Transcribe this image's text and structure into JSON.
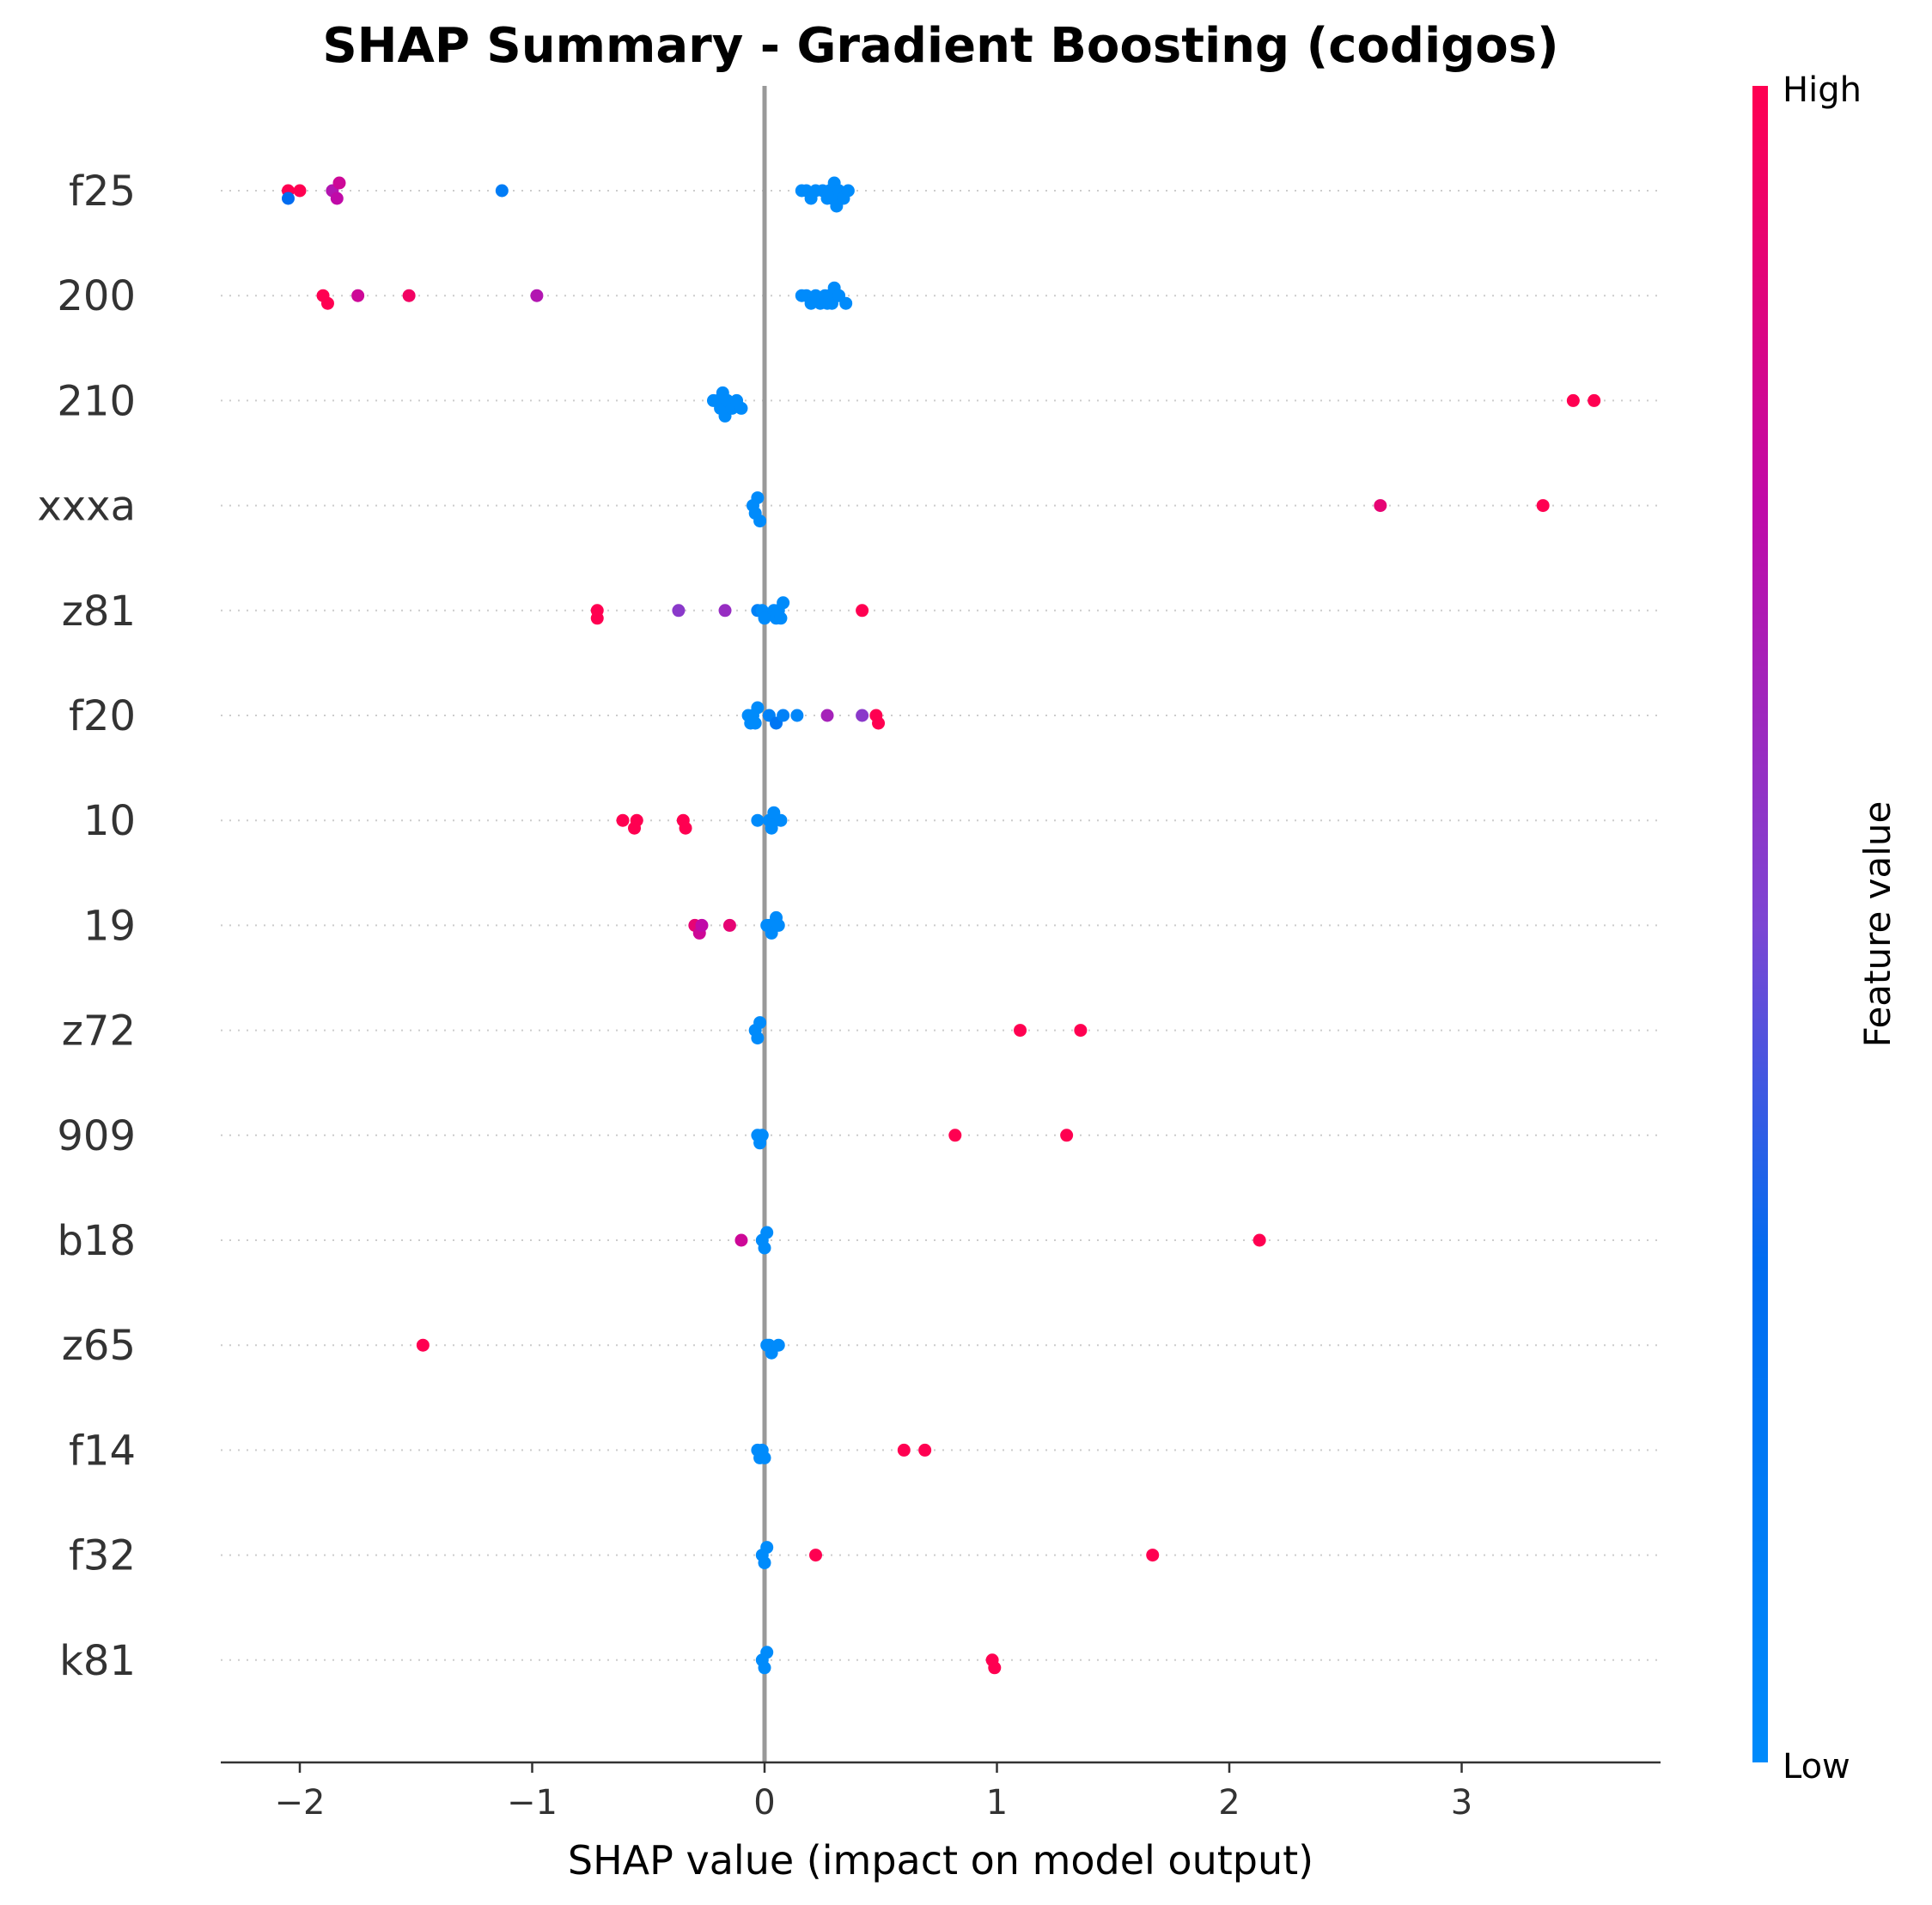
{
  "chart_data": {
    "type": "scatter",
    "title": "SHAP Summary - Gradient Boosting (codigos)",
    "xlabel": "SHAP value (impact on model output)",
    "xlim": [
      -2.35,
      3.85
    ],
    "xticks": [
      {
        "value": -2,
        "label": "−2"
      },
      {
        "value": -1,
        "label": "−1"
      },
      {
        "value": 0,
        "label": "0"
      },
      {
        "value": 1,
        "label": "1"
      },
      {
        "value": 2,
        "label": "2"
      },
      {
        "value": 3,
        "label": "3"
      }
    ],
    "colorbar": {
      "title": "Feature value",
      "high_label": "High",
      "low_label": "Low",
      "low_color": "#008bfb",
      "high_color": "#ff0051"
    },
    "grid": "dotted row lines per feature",
    "zero_line_color": "#999999",
    "features": [
      {
        "name": "f25",
        "points": [
          {
            "x": -2.05,
            "v": 1.0
          },
          {
            "x": -2.05,
            "v": 0.3
          },
          {
            "x": -2.0,
            "v": 1.0
          },
          {
            "x": -1.86,
            "v": 0.7
          },
          {
            "x": -1.84,
            "v": 0.75
          },
          {
            "x": -1.83,
            "v": 0.8
          },
          {
            "x": -1.13,
            "v": 0.15
          },
          {
            "x": 0.16,
            "v": 0
          },
          {
            "x": 0.18,
            "v": 0
          },
          {
            "x": 0.2,
            "v": 0
          },
          {
            "x": 0.22,
            "v": 0
          },
          {
            "x": 0.25,
            "v": 0
          },
          {
            "x": 0.27,
            "v": 0
          },
          {
            "x": 0.28,
            "v": 0
          },
          {
            "x": 0.29,
            "v": 0
          },
          {
            "x": 0.3,
            "v": 0
          },
          {
            "x": 0.31,
            "v": 0
          },
          {
            "x": 0.32,
            "v": 0
          },
          {
            "x": 0.34,
            "v": 0
          },
          {
            "x": 0.36,
            "v": 0
          }
        ]
      },
      {
        "name": "200",
        "points": [
          {
            "x": -1.9,
            "v": 1.0
          },
          {
            "x": -1.88,
            "v": 1.0
          },
          {
            "x": -1.75,
            "v": 0.8
          },
          {
            "x": -1.53,
            "v": 0.95
          },
          {
            "x": -0.98,
            "v": 0.7
          },
          {
            "x": 0.16,
            "v": 0
          },
          {
            "x": 0.18,
            "v": 0
          },
          {
            "x": 0.2,
            "v": 0
          },
          {
            "x": 0.22,
            "v": 0
          },
          {
            "x": 0.24,
            "v": 0
          },
          {
            "x": 0.26,
            "v": 0
          },
          {
            "x": 0.27,
            "v": 0
          },
          {
            "x": 0.28,
            "v": 0
          },
          {
            "x": 0.29,
            "v": 0
          },
          {
            "x": 0.3,
            "v": 0
          },
          {
            "x": 0.32,
            "v": 0
          },
          {
            "x": 0.35,
            "v": 0
          }
        ]
      },
      {
        "name": "210",
        "points": [
          {
            "x": -0.22,
            "v": 0
          },
          {
            "x": -0.2,
            "v": 0
          },
          {
            "x": -0.19,
            "v": 0
          },
          {
            "x": -0.18,
            "v": 0
          },
          {
            "x": -0.17,
            "v": 0
          },
          {
            "x": -0.16,
            "v": 0
          },
          {
            "x": -0.14,
            "v": 0
          },
          {
            "x": -0.12,
            "v": 0
          },
          {
            "x": -0.1,
            "v": 0
          },
          {
            "x": 3.48,
            "v": 1.0
          },
          {
            "x": 3.57,
            "v": 1.0
          }
        ]
      },
      {
        "name": "xxxa",
        "points": [
          {
            "x": -0.05,
            "v": 0
          },
          {
            "x": -0.04,
            "v": 0
          },
          {
            "x": -0.03,
            "v": 0
          },
          {
            "x": -0.02,
            "v": 0
          },
          {
            "x": 2.65,
            "v": 0.9
          },
          {
            "x": 3.35,
            "v": 1.0
          }
        ]
      },
      {
        "name": "z81",
        "points": [
          {
            "x": -0.72,
            "v": 1.0
          },
          {
            "x": -0.72,
            "v": 1.0
          },
          {
            "x": -0.37,
            "v": 0.55
          },
          {
            "x": -0.17,
            "v": 0.6
          },
          {
            "x": -0.03,
            "v": 0.1
          },
          {
            "x": -0.01,
            "v": 0
          },
          {
            "x": 0.0,
            "v": 0
          },
          {
            "x": 0.04,
            "v": 0
          },
          {
            "x": 0.05,
            "v": 0
          },
          {
            "x": 0.06,
            "v": 0
          },
          {
            "x": 0.07,
            "v": 0
          },
          {
            "x": 0.08,
            "v": 0
          },
          {
            "x": 0.42,
            "v": 1.0
          }
        ]
      },
      {
        "name": "f20",
        "points": [
          {
            "x": -0.07,
            "v": 0
          },
          {
            "x": -0.06,
            "v": 0
          },
          {
            "x": -0.05,
            "v": 0
          },
          {
            "x": -0.04,
            "v": 0
          },
          {
            "x": -0.03,
            "v": 0
          },
          {
            "x": 0.02,
            "v": 0.1
          },
          {
            "x": 0.05,
            "v": 0.2
          },
          {
            "x": 0.08,
            "v": 0.1
          },
          {
            "x": 0.14,
            "v": 0.05
          },
          {
            "x": 0.27,
            "v": 0.65
          },
          {
            "x": 0.42,
            "v": 0.55
          },
          {
            "x": 0.48,
            "v": 1.0
          },
          {
            "x": 0.49,
            "v": 1.0
          }
        ]
      },
      {
        "name": "10",
        "points": [
          {
            "x": -0.61,
            "v": 1.0
          },
          {
            "x": -0.55,
            "v": 1.0
          },
          {
            "x": -0.56,
            "v": 1.0
          },
          {
            "x": -0.35,
            "v": 1.0
          },
          {
            "x": -0.34,
            "v": 1.0
          },
          {
            "x": -0.03,
            "v": 0
          },
          {
            "x": 0.02,
            "v": 0
          },
          {
            "x": 0.03,
            "v": 0
          },
          {
            "x": 0.04,
            "v": 0
          },
          {
            "x": 0.07,
            "v": 0
          }
        ]
      },
      {
        "name": "19",
        "points": [
          {
            "x": -0.3,
            "v": 0.9
          },
          {
            "x": -0.28,
            "v": 0.8
          },
          {
            "x": -0.27,
            "v": 0.75
          },
          {
            "x": -0.15,
            "v": 0.9
          },
          {
            "x": 0.01,
            "v": 0
          },
          {
            "x": 0.02,
            "v": 0
          },
          {
            "x": 0.03,
            "v": 0
          },
          {
            "x": 0.05,
            "v": 0
          },
          {
            "x": 0.06,
            "v": 0
          }
        ]
      },
      {
        "name": "z72",
        "points": [
          {
            "x": -0.04,
            "v": 0
          },
          {
            "x": -0.03,
            "v": 0
          },
          {
            "x": -0.02,
            "v": 0
          },
          {
            "x": 1.1,
            "v": 1.0
          },
          {
            "x": 1.36,
            "v": 1.0
          }
        ]
      },
      {
        "name": "909",
        "points": [
          {
            "x": -0.03,
            "v": 0
          },
          {
            "x": -0.02,
            "v": 0
          },
          {
            "x": -0.01,
            "v": 0
          },
          {
            "x": 0.82,
            "v": 1.0
          },
          {
            "x": 1.3,
            "v": 1.0
          }
        ]
      },
      {
        "name": "b18",
        "points": [
          {
            "x": -0.1,
            "v": 0.8
          },
          {
            "x": -0.01,
            "v": 0
          },
          {
            "x": 0.0,
            "v": 0
          },
          {
            "x": 0.01,
            "v": 0
          },
          {
            "x": 2.13,
            "v": 1.0
          }
        ]
      },
      {
        "name": "z65",
        "points": [
          {
            "x": -1.47,
            "v": 1.0
          },
          {
            "x": 0.01,
            "v": 0
          },
          {
            "x": 0.02,
            "v": 0
          },
          {
            "x": 0.03,
            "v": 0
          },
          {
            "x": 0.06,
            "v": 0
          }
        ]
      },
      {
        "name": "f14",
        "points": [
          {
            "x": -0.03,
            "v": 0
          },
          {
            "x": -0.02,
            "v": 0
          },
          {
            "x": -0.01,
            "v": 0
          },
          {
            "x": 0.0,
            "v": 0
          },
          {
            "x": 0.6,
            "v": 1.0
          },
          {
            "x": 0.69,
            "v": 1.0
          }
        ]
      },
      {
        "name": "f32",
        "points": [
          {
            "x": -0.01,
            "v": 0
          },
          {
            "x": 0.0,
            "v": 0
          },
          {
            "x": 0.01,
            "v": 0
          },
          {
            "x": 0.22,
            "v": 1.0
          },
          {
            "x": 1.67,
            "v": 1.0
          }
        ]
      },
      {
        "name": "k81",
        "points": [
          {
            "x": -0.01,
            "v": 0
          },
          {
            "x": 0.0,
            "v": 0
          },
          {
            "x": 0.01,
            "v": 0
          },
          {
            "x": 0.98,
            "v": 1.0
          },
          {
            "x": 0.99,
            "v": 1.0
          }
        ]
      }
    ]
  }
}
